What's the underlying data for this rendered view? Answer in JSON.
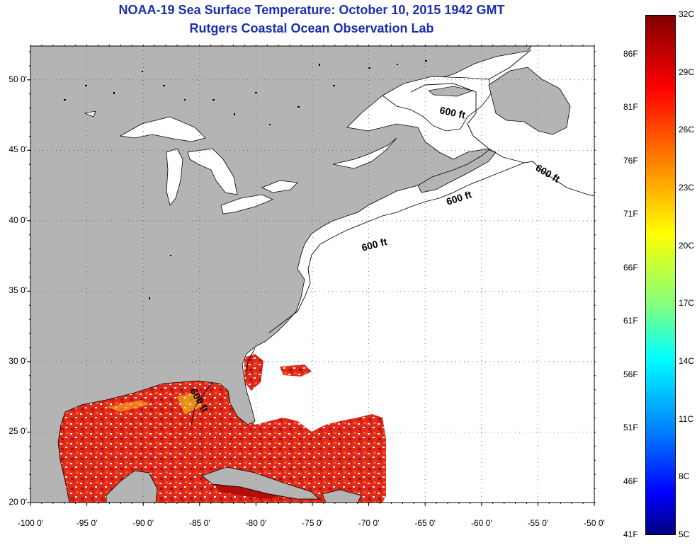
{
  "title": {
    "line1": "NOAA-19 Sea Surface Temperature:  October 10, 2015 1942 GMT",
    "line2": "Rutgers Coastal Ocean Observation Lab"
  },
  "map": {
    "lat_range": [
      20,
      52.4
    ],
    "lon_range": [
      -100,
      -50
    ],
    "lat_ticks": [
      {
        "value": 50,
        "label": "50 0'"
      },
      {
        "value": 45,
        "label": "45 0'"
      },
      {
        "value": 40,
        "label": "40 0'"
      },
      {
        "value": 35,
        "label": "35 0'"
      },
      {
        "value": 30,
        "label": "30 0'"
      },
      {
        "value": 25,
        "label": "25 0'"
      },
      {
        "value": 20,
        "label": "20 0'"
      }
    ],
    "lon_ticks": [
      {
        "value": -100,
        "label": "-100 0'"
      },
      {
        "value": -95,
        "label": "-95 0'"
      },
      {
        "value": -90,
        "label": "-90 0'"
      },
      {
        "value": -85,
        "label": "-85 0'"
      },
      {
        "value": -80,
        "label": "-80 0'"
      },
      {
        "value": -75,
        "label": "-75 0'"
      },
      {
        "value": -70,
        "label": "-70 0'"
      },
      {
        "value": -65,
        "label": "-65 0'"
      },
      {
        "value": -60,
        "label": "-60 0'"
      },
      {
        "value": -55,
        "label": "-55 0'"
      },
      {
        "value": -50,
        "label": "-50 0'"
      }
    ],
    "grid": true,
    "contour_labels": [
      "600 ft",
      "600 ft",
      "600 ft",
      "600 ft",
      "600 ft"
    ],
    "colors": {
      "land": "#b4b4b4",
      "ocean_no_data": "#ffffff",
      "sst_warm": "#e8281e",
      "sst_hot": "#b40000",
      "sst_mid": "#ff5a14"
    }
  },
  "colorbar": {
    "celsius_labels": [
      "32C",
      "29C",
      "26C",
      "23C",
      "20C",
      "17C",
      "14C",
      "11C",
      "8C",
      "5C"
    ],
    "fahrenheit_labels": [
      "86F",
      "81F",
      "76F",
      "71F",
      "66F",
      "61F",
      "56F",
      "51F",
      "46F",
      "41F"
    ],
    "range_c": [
      5,
      32
    ],
    "colormap": "jet"
  }
}
